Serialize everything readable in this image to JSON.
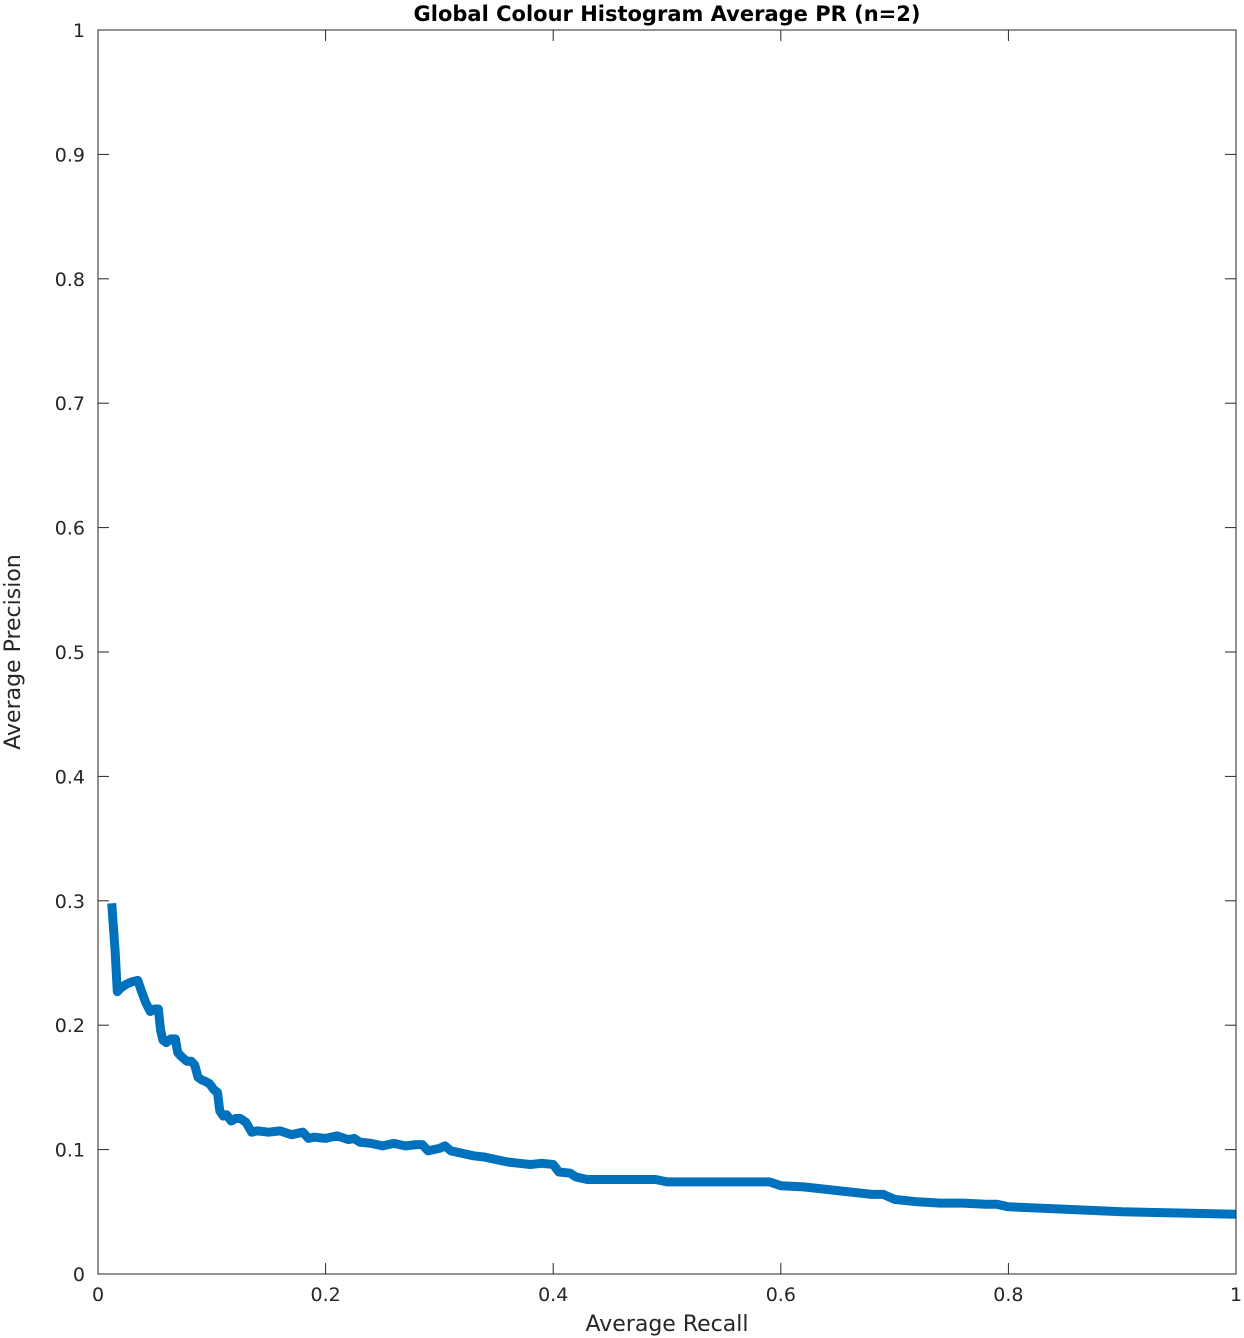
{
  "chart_data": {
    "type": "line",
    "title": "Global Colour Histogram Average PR (n=2)",
    "xlabel": "Average Recall",
    "ylabel": "Average Precision",
    "xlim": [
      0,
      1
    ],
    "ylim": [
      0,
      1
    ],
    "xticks": [
      0,
      0.2,
      0.4,
      0.6,
      0.8,
      1
    ],
    "xtick_labels": [
      "0",
      "0.2",
      "0.4",
      "0.6",
      "0.8",
      "1"
    ],
    "yticks": [
      0,
      0.1,
      0.2,
      0.3,
      0.4,
      0.5,
      0.6,
      0.7,
      0.8,
      0.9,
      1
    ],
    "ytick_labels": [
      "0",
      "0.1",
      "0.2",
      "0.3",
      "0.4",
      "0.5",
      "0.6",
      "0.7",
      "0.8",
      "0.9",
      "1"
    ],
    "grid": false,
    "legend": "none",
    "series": [
      {
        "color": "#0072BD",
        "x": [
          0.012,
          0.015,
          0.017,
          0.02,
          0.025,
          0.03,
          0.035,
          0.038,
          0.042,
          0.046,
          0.05,
          0.053,
          0.055,
          0.057,
          0.06,
          0.064,
          0.068,
          0.07,
          0.073,
          0.078,
          0.082,
          0.085,
          0.088,
          0.091,
          0.094,
          0.098,
          0.102,
          0.105,
          0.107,
          0.11,
          0.113,
          0.117,
          0.121,
          0.125,
          0.13,
          0.135,
          0.14,
          0.15,
          0.16,
          0.17,
          0.18,
          0.185,
          0.19,
          0.2,
          0.21,
          0.22,
          0.225,
          0.23,
          0.24,
          0.25,
          0.26,
          0.27,
          0.28,
          0.285,
          0.29,
          0.3,
          0.305,
          0.31,
          0.32,
          0.33,
          0.34,
          0.35,
          0.36,
          0.37,
          0.38,
          0.39,
          0.4,
          0.405,
          0.415,
          0.42,
          0.43,
          0.45,
          0.47,
          0.49,
          0.5,
          0.52,
          0.54,
          0.56,
          0.58,
          0.59,
          0.6,
          0.62,
          0.64,
          0.66,
          0.68,
          0.69,
          0.7,
          0.72,
          0.74,
          0.76,
          0.78,
          0.79,
          0.8,
          0.85,
          0.9,
          0.95,
          1.0
        ],
        "y": [
          0.298,
          0.26,
          0.227,
          0.23,
          0.233,
          0.235,
          0.236,
          0.228,
          0.218,
          0.211,
          0.213,
          0.213,
          0.196,
          0.188,
          0.186,
          0.189,
          0.189,
          0.178,
          0.175,
          0.171,
          0.171,
          0.168,
          0.158,
          0.156,
          0.155,
          0.153,
          0.148,
          0.146,
          0.131,
          0.127,
          0.128,
          0.123,
          0.125,
          0.125,
          0.122,
          0.114,
          0.115,
          0.114,
          0.115,
          0.112,
          0.114,
          0.109,
          0.11,
          0.109,
          0.111,
          0.108,
          0.109,
          0.106,
          0.105,
          0.103,
          0.105,
          0.103,
          0.104,
          0.104,
          0.099,
          0.101,
          0.103,
          0.099,
          0.097,
          0.095,
          0.094,
          0.092,
          0.09,
          0.089,
          0.088,
          0.089,
          0.088,
          0.082,
          0.081,
          0.078,
          0.076,
          0.076,
          0.076,
          0.076,
          0.074,
          0.074,
          0.074,
          0.074,
          0.074,
          0.074,
          0.071,
          0.07,
          0.068,
          0.066,
          0.064,
          0.064,
          0.06,
          0.058,
          0.057,
          0.057,
          0.056,
          0.056,
          0.054,
          0.052,
          0.05,
          0.049,
          0.048
        ]
      }
    ]
  }
}
